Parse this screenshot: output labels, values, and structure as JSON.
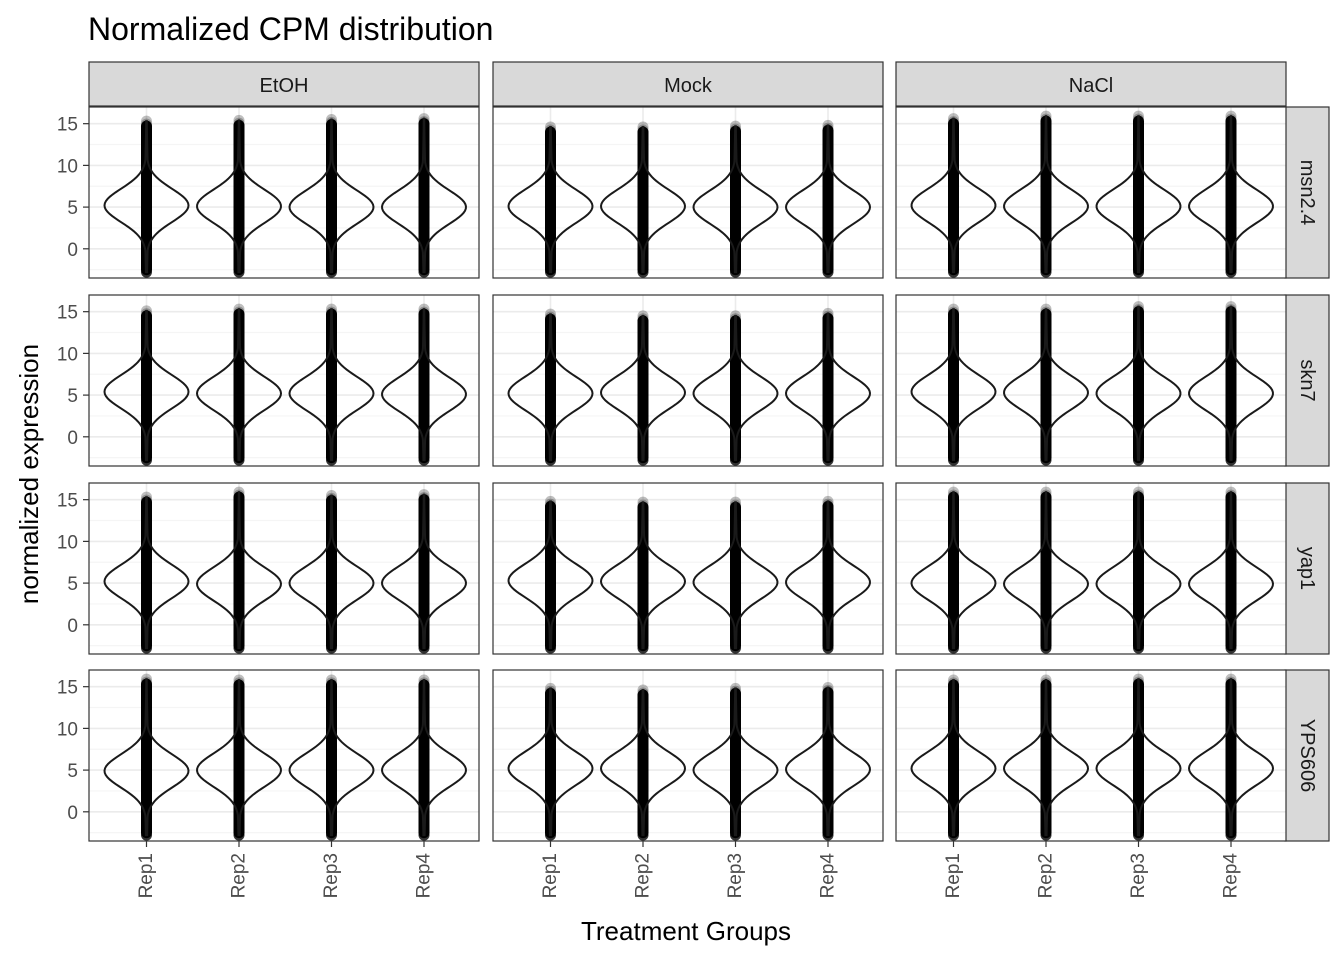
{
  "chart_data": {
    "type": "violin",
    "title": "Normalized CPM distribution",
    "xlabel": "Treatment Groups",
    "ylabel": "normalized expression",
    "facet_cols": [
      "EtOH",
      "Mock",
      "NaCl"
    ],
    "facet_rows": [
      "msn2.4",
      "skn7",
      "yap1",
      "YPS606"
    ],
    "categories": [
      "Rep1",
      "Rep2",
      "Rep3",
      "Rep4"
    ],
    "yticks": [
      0,
      5,
      10,
      15
    ],
    "ylim": [
      -3.5,
      17
    ],
    "grid": true,
    "theme": "bw",
    "overlay": "jittered points (black, semi-transparent)",
    "panels": [
      {
        "row": "msn2.4",
        "col": "EtOH",
        "violins": [
          {
            "category": "Rep1",
            "min": -2.8,
            "max": 15.3,
            "mode": 5.2
          },
          {
            "category": "Rep2",
            "min": -2.8,
            "max": 15.4,
            "mode": 5.1
          },
          {
            "category": "Rep3",
            "min": -2.8,
            "max": 15.5,
            "mode": 5.0
          },
          {
            "category": "Rep4",
            "min": -2.8,
            "max": 15.6,
            "mode": 5.0
          }
        ]
      },
      {
        "row": "msn2.4",
        "col": "Mock",
        "violins": [
          {
            "category": "Rep1",
            "min": -2.8,
            "max": 14.6,
            "mode": 5.1
          },
          {
            "category": "Rep2",
            "min": -2.8,
            "max": 14.6,
            "mode": 5.1
          },
          {
            "category": "Rep3",
            "min": -2.8,
            "max": 14.7,
            "mode": 5.0
          },
          {
            "category": "Rep4",
            "min": -2.8,
            "max": 14.8,
            "mode": 5.0
          }
        ]
      },
      {
        "row": "msn2.4",
        "col": "NaCl",
        "violins": [
          {
            "category": "Rep1",
            "min": -2.8,
            "max": 15.6,
            "mode": 5.2
          },
          {
            "category": "Rep2",
            "min": -2.8,
            "max": 15.9,
            "mode": 5.1
          },
          {
            "category": "Rep3",
            "min": -2.8,
            "max": 15.9,
            "mode": 5.1
          },
          {
            "category": "Rep4",
            "min": -2.8,
            "max": 15.9,
            "mode": 5.1
          }
        ]
      },
      {
        "row": "skn7",
        "col": "EtOH",
        "violins": [
          {
            "category": "Rep1",
            "min": -2.8,
            "max": 15.1,
            "mode": 5.4
          },
          {
            "category": "Rep2",
            "min": -2.8,
            "max": 15.3,
            "mode": 5.2
          },
          {
            "category": "Rep3",
            "min": -2.8,
            "max": 15.3,
            "mode": 5.2
          },
          {
            "category": "Rep4",
            "min": -2.8,
            "max": 15.3,
            "mode": 5.1
          }
        ]
      },
      {
        "row": "skn7",
        "col": "Mock",
        "violins": [
          {
            "category": "Rep1",
            "min": -2.8,
            "max": 14.7,
            "mode": 5.2
          },
          {
            "category": "Rep2",
            "min": -2.8,
            "max": 14.5,
            "mode": 5.3
          },
          {
            "category": "Rep3",
            "min": -2.8,
            "max": 14.5,
            "mode": 5.2
          },
          {
            "category": "Rep4",
            "min": -2.8,
            "max": 14.8,
            "mode": 5.2
          }
        ]
      },
      {
        "row": "skn7",
        "col": "NaCl",
        "violins": [
          {
            "category": "Rep1",
            "min": -2.8,
            "max": 15.3,
            "mode": 5.4
          },
          {
            "category": "Rep2",
            "min": -2.8,
            "max": 15.3,
            "mode": 5.3
          },
          {
            "category": "Rep3",
            "min": -2.8,
            "max": 15.6,
            "mode": 5.2
          },
          {
            "category": "Rep4",
            "min": -2.8,
            "max": 15.6,
            "mode": 5.2
          }
        ]
      },
      {
        "row": "yap1",
        "col": "EtOH",
        "violins": [
          {
            "category": "Rep1",
            "min": -2.8,
            "max": 15.3,
            "mode": 5.2
          },
          {
            "category": "Rep2",
            "min": -2.8,
            "max": 15.9,
            "mode": 4.9
          },
          {
            "category": "Rep3",
            "min": -2.8,
            "max": 15.5,
            "mode": 5.0
          },
          {
            "category": "Rep4",
            "min": -2.8,
            "max": 15.6,
            "mode": 5.0
          }
        ]
      },
      {
        "row": "yap1",
        "col": "Mock",
        "violins": [
          {
            "category": "Rep1",
            "min": -2.8,
            "max": 14.8,
            "mode": 5.3
          },
          {
            "category": "Rep2",
            "min": -2.8,
            "max": 14.7,
            "mode": 5.2
          },
          {
            "category": "Rep3",
            "min": -2.8,
            "max": 14.7,
            "mode": 5.1
          },
          {
            "category": "Rep4",
            "min": -2.8,
            "max": 14.8,
            "mode": 5.1
          }
        ]
      },
      {
        "row": "yap1",
        "col": "NaCl",
        "violins": [
          {
            "category": "Rep1",
            "min": -2.8,
            "max": 15.9,
            "mode": 5.0
          },
          {
            "category": "Rep2",
            "min": -2.8,
            "max": 15.9,
            "mode": 4.9
          },
          {
            "category": "Rep3",
            "min": -2.8,
            "max": 15.9,
            "mode": 4.9
          },
          {
            "category": "Rep4",
            "min": -2.8,
            "max": 15.9,
            "mode": 4.9
          }
        ]
      },
      {
        "row": "YPS606",
        "col": "EtOH",
        "violins": [
          {
            "category": "Rep1",
            "min": -2.8,
            "max": 15.9,
            "mode": 4.9
          },
          {
            "category": "Rep2",
            "min": -2.8,
            "max": 15.8,
            "mode": 5.0
          },
          {
            "category": "Rep3",
            "min": -2.8,
            "max": 15.8,
            "mode": 5.0
          },
          {
            "category": "Rep4",
            "min": -2.8,
            "max": 15.8,
            "mode": 5.0
          }
        ]
      },
      {
        "row": "YPS606",
        "col": "Mock",
        "violins": [
          {
            "category": "Rep1",
            "min": -2.8,
            "max": 14.8,
            "mode": 5.2
          },
          {
            "category": "Rep2",
            "min": -2.8,
            "max": 14.6,
            "mode": 5.2
          },
          {
            "category": "Rep3",
            "min": -2.8,
            "max": 14.8,
            "mode": 5.0
          },
          {
            "category": "Rep4",
            "min": -2.8,
            "max": 14.9,
            "mode": 5.1
          }
        ]
      },
      {
        "row": "YPS606",
        "col": "NaCl",
        "violins": [
          {
            "category": "Rep1",
            "min": -2.8,
            "max": 15.8,
            "mode": 5.2
          },
          {
            "category": "Rep2",
            "min": -2.8,
            "max": 15.8,
            "mode": 5.2
          },
          {
            "category": "Rep3",
            "min": -2.8,
            "max": 15.9,
            "mode": 5.2
          },
          {
            "category": "Rep4",
            "min": -2.8,
            "max": 15.9,
            "mode": 5.2
          }
        ]
      }
    ]
  },
  "colors": {
    "strip_fill": "#d9d9d9",
    "strip_border": "#333333",
    "panel_border": "#333333",
    "grid_major": "#ebebeb",
    "grid_minor": "#f5f5f5",
    "violin_stroke": "#1a1a1a",
    "points": "#000000",
    "tick_label": "#4d4d4d"
  }
}
